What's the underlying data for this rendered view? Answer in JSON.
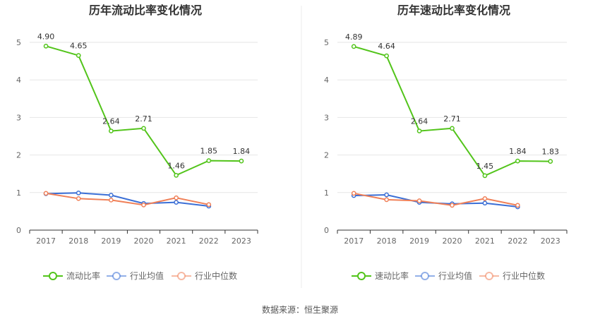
{
  "chart_data": [
    {
      "type": "line",
      "title": "历年流动比率变化情况",
      "categories": [
        "2017",
        "2018",
        "2019",
        "2020",
        "2021",
        "2022",
        "2023"
      ],
      "y_ticks": [
        "0",
        "1",
        "2",
        "3",
        "4",
        "5"
      ],
      "ylim": [
        0,
        5
      ],
      "grid": true,
      "legend_position": "bottom",
      "series": [
        {
          "name": "流动比率",
          "values": [
            4.9,
            4.65,
            2.64,
            2.71,
            1.46,
            1.85,
            1.84
          ],
          "labels": [
            "4.90",
            "4.65",
            "2.64",
            "2.71",
            "1.46",
            "1.85",
            "1.84"
          ],
          "color": "#52c41a"
        },
        {
          "name": "行业均值",
          "values": [
            0.97,
            0.99,
            0.93,
            0.71,
            0.74,
            0.64,
            null
          ],
          "color": "#3b6fd6"
        },
        {
          "name": "行业中位数",
          "values": [
            0.98,
            0.84,
            0.8,
            0.67,
            0.86,
            0.68,
            null
          ],
          "color": "#f08058"
        }
      ]
    },
    {
      "type": "line",
      "title": "历年速动比率变化情况",
      "categories": [
        "2017",
        "2018",
        "2019",
        "2020",
        "2021",
        "2022",
        "2023"
      ],
      "y_ticks": [
        "0",
        "1",
        "2",
        "3",
        "4",
        "5"
      ],
      "ylim": [
        0,
        5
      ],
      "grid": true,
      "legend_position": "bottom",
      "series": [
        {
          "name": "速动比率",
          "values": [
            4.89,
            4.64,
            2.64,
            2.71,
            1.45,
            1.84,
            1.83
          ],
          "labels": [
            "4.89",
            "4.64",
            "2.64",
            "2.71",
            "1.45",
            "1.84",
            "1.83"
          ],
          "color": "#52c41a"
        },
        {
          "name": "行业均值",
          "values": [
            0.92,
            0.94,
            0.74,
            0.7,
            0.72,
            0.62,
            null
          ],
          "color": "#3b6fd6"
        },
        {
          "name": "行业中位数",
          "values": [
            0.98,
            0.81,
            0.78,
            0.66,
            0.84,
            0.66,
            null
          ],
          "color": "#f08058"
        }
      ]
    }
  ],
  "source": "数据来源：恒生聚源",
  "colors": {
    "grid": "#e6e6e6",
    "axis": "#333333",
    "divider": "#eeeeee"
  }
}
